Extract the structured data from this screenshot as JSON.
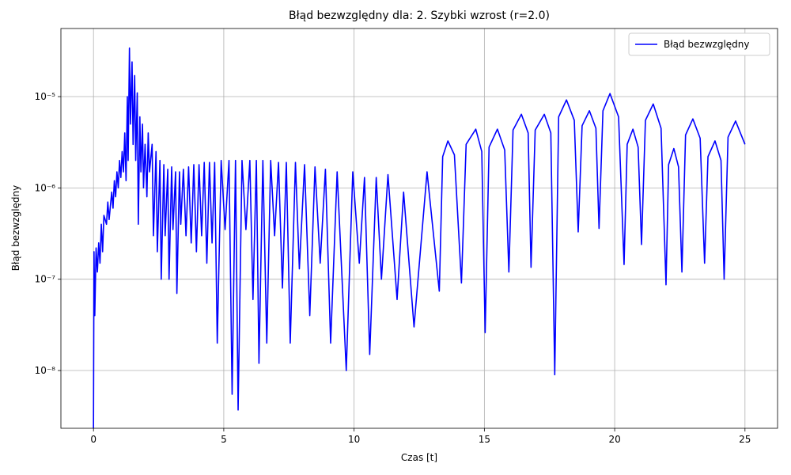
{
  "chart_data": {
    "type": "line",
    "title": "Błąd bezwzględny dla: 2. Szybki wzrost (r=2.0)",
    "x_label": "Czas [t]",
    "y_label": "Błąd bezwzględny",
    "yscale": "log",
    "grid": true,
    "legend": "upper right",
    "xlim": [
      -1.25,
      26.25
    ],
    "ylim": [
      2.33e-09,
      5.57e-05
    ],
    "xticks": [
      0,
      5,
      10,
      15,
      20,
      25
    ],
    "yticks": [
      {
        "value": 1e-08,
        "label": "10⁻⁸"
      },
      {
        "value": 1e-07,
        "label": "10⁻⁷"
      },
      {
        "value": 1e-06,
        "label": "10⁻⁶"
      },
      {
        "value": 1e-05,
        "label": "10⁻⁵"
      }
    ],
    "x": [
      0.0,
      0.02,
      0.05,
      0.1,
      0.15,
      0.2,
      0.25,
      0.3,
      0.35,
      0.4,
      0.5,
      0.55,
      0.6,
      0.7,
      0.75,
      0.8,
      0.85,
      0.9,
      0.95,
      1.0,
      1.05,
      1.1,
      1.15,
      1.2,
      1.25,
      1.3,
      1.33,
      1.38,
      1.42,
      1.48,
      1.52,
      1.58,
      1.62,
      1.68,
      1.72,
      1.78,
      1.82,
      1.88,
      1.92,
      1.98,
      2.05,
      2.1,
      2.15,
      2.25,
      2.3,
      2.4,
      2.45,
      2.55,
      2.6,
      2.7,
      2.75,
      2.85,
      2.9,
      3.0,
      3.05,
      3.15,
      3.2,
      3.3,
      3.35,
      3.45,
      3.55,
      3.65,
      3.75,
      3.85,
      3.95,
      4.05,
      4.15,
      4.25,
      4.35,
      4.45,
      4.55,
      4.65,
      4.75,
      4.9,
      5.05,
      5.2,
      5.32,
      5.45,
      5.55,
      5.7,
      5.85,
      6.0,
      6.12,
      6.25,
      6.35,
      6.5,
      6.65,
      6.8,
      6.95,
      7.1,
      7.25,
      7.4,
      7.55,
      7.75,
      7.9,
      8.1,
      8.3,
      8.5,
      8.7,
      8.9,
      9.1,
      9.35,
      9.7,
      9.95,
      10.2,
      10.4,
      10.6,
      10.85,
      11.05,
      11.3,
      11.65,
      11.9,
      12.3,
      12.8,
      13.27,
      13.4,
      13.6,
      13.85,
      14.12,
      14.3,
      14.67,
      14.9,
      15.03,
      15.18,
      15.5,
      15.78,
      15.94,
      16.1,
      16.42,
      16.68,
      16.79,
      16.95,
      17.3,
      17.55,
      17.7,
      17.85,
      18.15,
      18.45,
      18.6,
      18.75,
      19.03,
      19.28,
      19.4,
      19.55,
      19.82,
      20.15,
      20.36,
      20.48,
      20.7,
      20.9,
      21.03,
      21.18,
      21.48,
      21.78,
      21.97,
      22.07,
      22.27,
      22.45,
      22.58,
      22.72,
      23.0,
      23.28,
      23.45,
      23.58,
      23.85,
      24.08,
      24.2,
      24.35,
      24.64,
      25.0
    ],
    "series": [
      {
        "name": "Błąd bezwzględny",
        "color": "#0000ff",
        "values": [
          2.3e-09,
          2e-07,
          4e-08,
          2.2e-07,
          1.2e-07,
          2.5e-07,
          1.5e-07,
          4e-07,
          2e-07,
          5e-07,
          4e-07,
          7e-07,
          4.5e-07,
          9e-07,
          6e-07,
          1.2e-06,
          8e-07,
          1.5e-06,
          1e-06,
          2e-06,
          1.3e-06,
          2.5e-06,
          1.5e-06,
          4e-06,
          1.2e-06,
          1e-05,
          2e-06,
          3.4e-05,
          5e-06,
          2.4e-05,
          3e-06,
          1.7e-05,
          2e-06,
          1.1e-05,
          4e-07,
          6e-06,
          1.5e-06,
          5e-06,
          1e-06,
          3e-06,
          8e-07,
          4e-06,
          1.5e-06,
          3e-06,
          3e-07,
          2.5e-06,
          2e-07,
          2e-06,
          1e-07,
          1.8e-06,
          3e-07,
          1.6e-06,
          1e-07,
          1.7e-06,
          3.5e-07,
          1.5e-06,
          7e-08,
          1.5e-06,
          4e-07,
          1.6e-06,
          3e-07,
          1.7e-06,
          2.5e-07,
          1.8e-06,
          2e-07,
          1.8e-06,
          3e-07,
          1.9e-06,
          1.5e-07,
          1.9e-06,
          2.5e-07,
          1.9e-06,
          2e-08,
          2e-06,
          3.5e-07,
          2e-06,
          5.5e-09,
          2e-06,
          3.7e-09,
          2e-06,
          3.5e-07,
          2e-06,
          6e-08,
          2e-06,
          1.2e-08,
          2e-06,
          2e-08,
          2e-06,
          3e-07,
          1.9e-06,
          8e-08,
          1.9e-06,
          2e-08,
          1.9e-06,
          1.3e-07,
          1.8e-06,
          4e-08,
          1.7e-06,
          1.5e-07,
          1.6e-06,
          2e-08,
          1.5e-06,
          1e-08,
          1.5e-06,
          1.5e-07,
          1.3e-06,
          1.5e-08,
          1.3e-06,
          1e-07,
          1.4e-06,
          6e-08,
          9e-07,
          3e-08,
          1.5e-06,
          7.4e-08,
          2.2e-06,
          3.27e-06,
          2.3e-06,
          9.1e-08,
          3e-06,
          4.4e-06,
          2.5e-06,
          2.6e-08,
          2.8e-06,
          4.4e-06,
          2.6e-06,
          1.2e-07,
          4.3e-06,
          6.4e-06,
          4e-06,
          1.35e-07,
          4.3e-06,
          6.4e-06,
          4e-06,
          9e-09,
          6e-06,
          9.2e-06,
          5.5e-06,
          3.3e-07,
          4.8e-06,
          7e-06,
          4.5e-06,
          3.6e-07,
          7e-06,
          1.08e-05,
          6e-06,
          1.45e-07,
          3e-06,
          4.4e-06,
          2.8e-06,
          2.4e-07,
          5.5e-06,
          8.3e-06,
          4.5e-06,
          8.7e-08,
          1.8e-06,
          2.7e-06,
          1.7e-06,
          1.2e-07,
          3.8e-06,
          5.7e-06,
          3.5e-06,
          1.5e-07,
          2.2e-06,
          3.27e-06,
          2e-06,
          1e-07,
          3.6e-06,
          5.4e-06,
          3e-06
        ]
      }
    ]
  }
}
